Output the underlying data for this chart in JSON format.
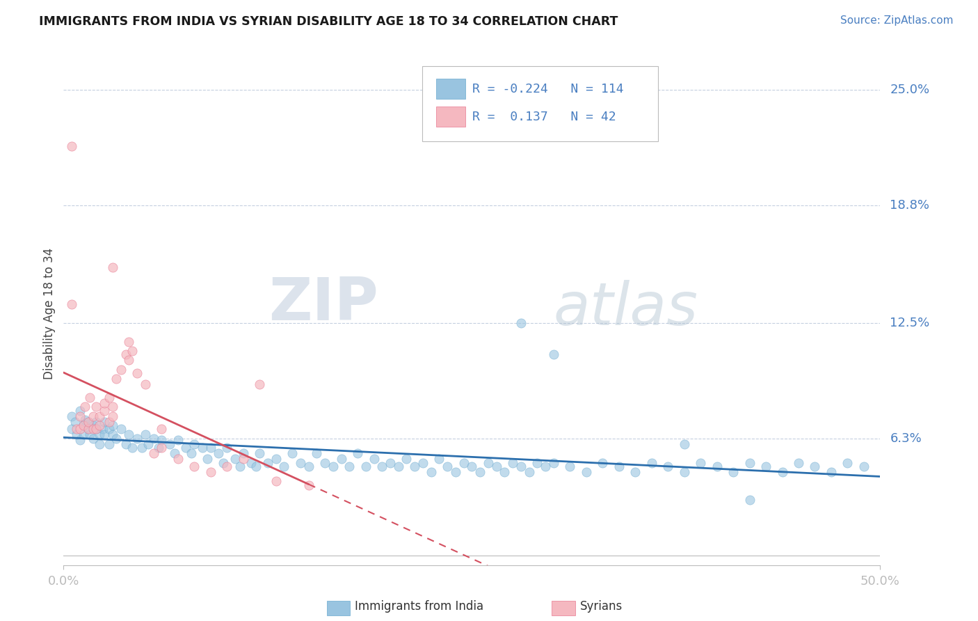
{
  "title": "IMMIGRANTS FROM INDIA VS SYRIAN DISABILITY AGE 18 TO 34 CORRELATION CHART",
  "source": "Source: ZipAtlas.com",
  "ylabel": "Disability Age 18 to 34",
  "xlim": [
    0.0,
    0.5
  ],
  "ylim": [
    -0.005,
    0.265
  ],
  "ytick_vals": [
    0.063,
    0.125,
    0.188,
    0.25
  ],
  "ytick_labels": [
    "6.3%",
    "12.5%",
    "18.8%",
    "25.0%"
  ],
  "xtick_vals": [
    0.0,
    0.5
  ],
  "xtick_labels": [
    "0.0%",
    "50.0%"
  ],
  "india_color": "#99c4e0",
  "india_edge_color": "#6aaacf",
  "syria_color": "#f5b8c0",
  "syria_edge_color": "#e87890",
  "india_line_color": "#2c6fad",
  "syria_line_color": "#d45060",
  "R_india": -0.224,
  "N_india": 114,
  "R_syria": 0.137,
  "N_syria": 42,
  "watermark_zip": "ZIP",
  "watermark_atlas": "atlas",
  "india_scatter_x": [
    0.005,
    0.005,
    0.007,
    0.008,
    0.01,
    0.01,
    0.012,
    0.012,
    0.013,
    0.015,
    0.015,
    0.016,
    0.018,
    0.018,
    0.02,
    0.02,
    0.022,
    0.022,
    0.024,
    0.025,
    0.025,
    0.028,
    0.028,
    0.03,
    0.03,
    0.032,
    0.035,
    0.038,
    0.04,
    0.042,
    0.045,
    0.048,
    0.05,
    0.052,
    0.055,
    0.058,
    0.06,
    0.065,
    0.068,
    0.07,
    0.075,
    0.078,
    0.08,
    0.085,
    0.088,
    0.09,
    0.095,
    0.098,
    0.1,
    0.105,
    0.108,
    0.11,
    0.115,
    0.118,
    0.12,
    0.125,
    0.13,
    0.135,
    0.14,
    0.145,
    0.15,
    0.155,
    0.16,
    0.165,
    0.17,
    0.175,
    0.18,
    0.185,
    0.19,
    0.195,
    0.2,
    0.205,
    0.21,
    0.215,
    0.22,
    0.225,
    0.23,
    0.235,
    0.24,
    0.245,
    0.25,
    0.255,
    0.26,
    0.265,
    0.27,
    0.275,
    0.28,
    0.285,
    0.29,
    0.295,
    0.3,
    0.31,
    0.32,
    0.33,
    0.34,
    0.35,
    0.36,
    0.37,
    0.38,
    0.39,
    0.4,
    0.41,
    0.42,
    0.43,
    0.44,
    0.45,
    0.46,
    0.47,
    0.48,
    0.49,
    0.28,
    0.3,
    0.38,
    0.42
  ],
  "india_scatter_y": [
    0.075,
    0.068,
    0.072,
    0.065,
    0.078,
    0.062,
    0.07,
    0.065,
    0.073,
    0.068,
    0.072,
    0.065,
    0.07,
    0.063,
    0.068,
    0.072,
    0.065,
    0.06,
    0.068,
    0.072,
    0.065,
    0.068,
    0.06,
    0.065,
    0.07,
    0.063,
    0.068,
    0.06,
    0.065,
    0.058,
    0.063,
    0.058,
    0.065,
    0.06,
    0.063,
    0.058,
    0.062,
    0.06,
    0.055,
    0.062,
    0.058,
    0.055,
    0.06,
    0.058,
    0.052,
    0.058,
    0.055,
    0.05,
    0.058,
    0.052,
    0.048,
    0.055,
    0.05,
    0.048,
    0.055,
    0.05,
    0.052,
    0.048,
    0.055,
    0.05,
    0.048,
    0.055,
    0.05,
    0.048,
    0.052,
    0.048,
    0.055,
    0.048,
    0.052,
    0.048,
    0.05,
    0.048,
    0.052,
    0.048,
    0.05,
    0.045,
    0.052,
    0.048,
    0.045,
    0.05,
    0.048,
    0.045,
    0.05,
    0.048,
    0.045,
    0.05,
    0.048,
    0.045,
    0.05,
    0.048,
    0.05,
    0.048,
    0.045,
    0.05,
    0.048,
    0.045,
    0.05,
    0.048,
    0.045,
    0.05,
    0.048,
    0.045,
    0.05,
    0.048,
    0.045,
    0.05,
    0.048,
    0.045,
    0.05,
    0.048,
    0.125,
    0.108,
    0.06,
    0.03
  ],
  "syria_scatter_x": [
    0.005,
    0.008,
    0.01,
    0.01,
    0.012,
    0.013,
    0.015,
    0.015,
    0.016,
    0.018,
    0.018,
    0.02,
    0.02,
    0.022,
    0.022,
    0.025,
    0.025,
    0.028,
    0.028,
    0.03,
    0.03,
    0.032,
    0.035,
    0.038,
    0.04,
    0.042,
    0.045,
    0.05,
    0.055,
    0.06,
    0.07,
    0.08,
    0.09,
    0.1,
    0.11,
    0.13,
    0.15,
    0.005,
    0.03,
    0.04,
    0.06,
    0.12
  ],
  "syria_scatter_y": [
    0.22,
    0.068,
    0.068,
    0.075,
    0.07,
    0.08,
    0.068,
    0.072,
    0.085,
    0.068,
    0.075,
    0.068,
    0.08,
    0.07,
    0.075,
    0.078,
    0.082,
    0.072,
    0.085,
    0.075,
    0.08,
    0.095,
    0.1,
    0.108,
    0.105,
    0.11,
    0.098,
    0.092,
    0.055,
    0.058,
    0.052,
    0.048,
    0.045,
    0.048,
    0.052,
    0.04,
    0.038,
    0.135,
    0.155,
    0.115,
    0.068,
    0.092
  ]
}
